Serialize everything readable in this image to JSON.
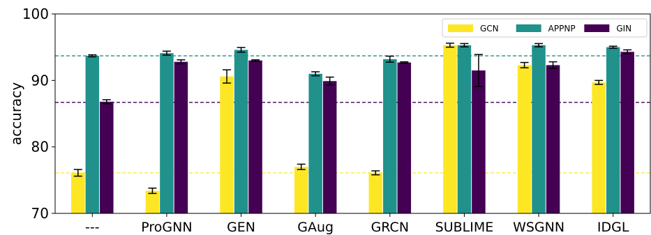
{
  "chart_data": {
    "type": "bar",
    "title": "",
    "xlabel": "",
    "ylabel": "accuracy",
    "ylim": [
      70,
      100
    ],
    "yticks": [
      70,
      80,
      90,
      100
    ],
    "grid": false,
    "legend_position": "top-right",
    "legend_layout": "horizontal",
    "categories": [
      "---",
      "ProGNN",
      "GEN",
      "GAug",
      "GRCN",
      "SUBLIME",
      "WSGNN",
      "IDGL"
    ],
    "series": [
      {
        "name": "GCN",
        "color": "#fde725",
        "values": [
          76.1,
          73.4,
          90.6,
          77.0,
          76.1,
          95.3,
          92.3,
          89.7
        ],
        "errors": [
          0.5,
          0.4,
          1.0,
          0.4,
          0.3,
          0.3,
          0.4,
          0.3
        ]
      },
      {
        "name": "APPNP",
        "color": "#21918c",
        "values": [
          93.7,
          94.1,
          94.6,
          91.0,
          93.2,
          95.3,
          95.3,
          95.0
        ],
        "errors": [
          0.15,
          0.3,
          0.35,
          0.3,
          0.45,
          0.25,
          0.25,
          0.15
        ]
      },
      {
        "name": "GIN",
        "color": "#440154",
        "values": [
          86.8,
          92.8,
          93.0,
          89.9,
          92.7,
          91.5,
          92.3,
          94.3
        ],
        "errors": [
          0.3,
          0.3,
          0.1,
          0.6,
          0.1,
          2.4,
          0.5,
          0.3
        ]
      }
    ],
    "reference_lines": [
      {
        "series": "APPNP",
        "value": 93.7,
        "color": "#21918c",
        "style": "dashed"
      },
      {
        "series": "GIN",
        "value": 86.7,
        "color": "#440154",
        "style": "dashed"
      },
      {
        "series": "GCN",
        "value": 76.1,
        "color": "#fde725",
        "style": "dashed"
      }
    ]
  }
}
